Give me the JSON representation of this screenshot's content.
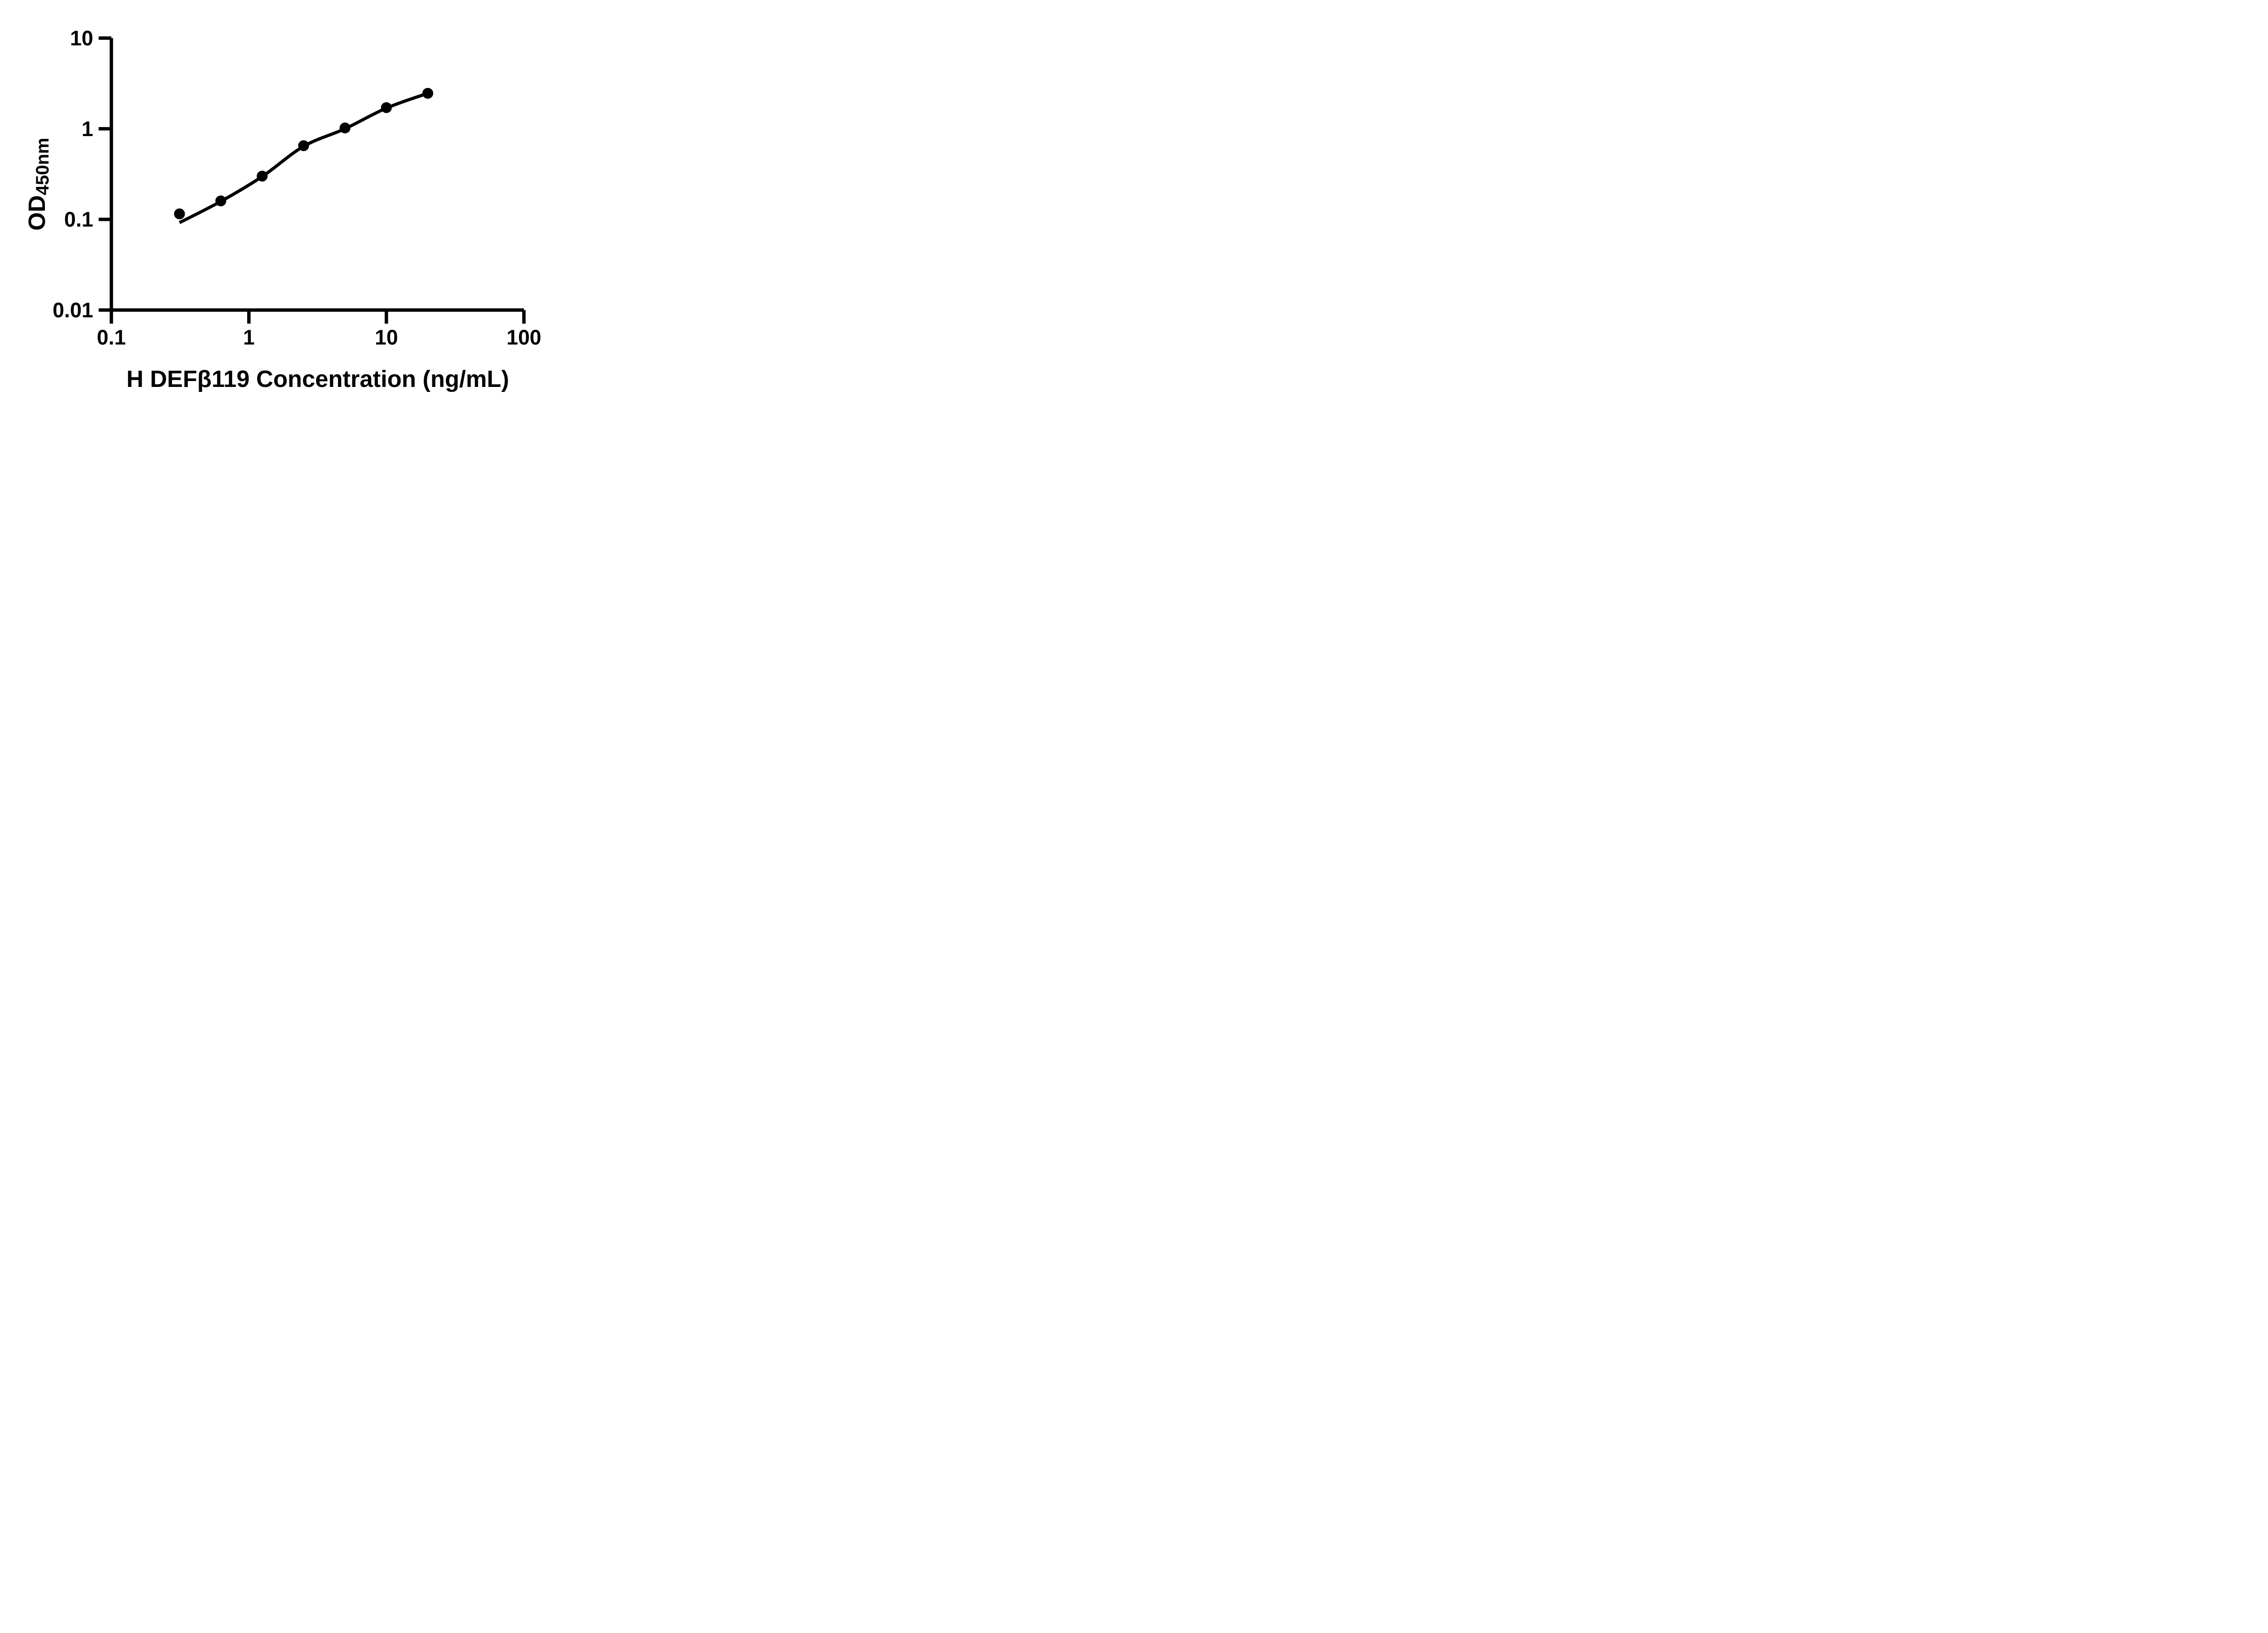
{
  "page": {
    "background": "#ffffff",
    "ink_color": "#000000"
  },
  "chart_data": {
    "type": "scatter",
    "title": "",
    "xlabel": "H DEFβ119 Concentration (ng/mL)",
    "ylabel": {
      "main": "OD",
      "sub": "450nm"
    },
    "x_scale": "log",
    "y_scale": "log",
    "xlim": [
      0.1,
      100
    ],
    "ylim": [
      0.01,
      10
    ],
    "grid": false,
    "legend": null,
    "x_ticks": [
      {
        "v": 0.1,
        "label": "0.1"
      },
      {
        "v": 1,
        "label": "1"
      },
      {
        "v": 10,
        "label": "10"
      },
      {
        "v": 100,
        "label": "100"
      }
    ],
    "y_ticks": [
      {
        "v": 10,
        "label": "10"
      },
      {
        "v": 1,
        "label": "1"
      },
      {
        "v": 0.1,
        "label": "0.1"
      },
      {
        "v": 0.01,
        "label": "0.01"
      }
    ],
    "series": [
      {
        "marker": "filled-circle",
        "color": "#000000",
        "points": [
          {
            "x": 0.313,
            "y": 0.115
          },
          {
            "x": 0.625,
            "y": 0.16
          },
          {
            "x": 1.25,
            "y": 0.3
          },
          {
            "x": 2.5,
            "y": 0.65
          },
          {
            "x": 5,
            "y": 1.02
          },
          {
            "x": 10,
            "y": 1.71
          },
          {
            "x": 20,
            "y": 2.46
          }
        ],
        "fit_curve": [
          {
            "x": 0.313,
            "y": 0.092
          },
          {
            "x": 0.625,
            "y": 0.158
          },
          {
            "x": 1.25,
            "y": 0.297
          },
          {
            "x": 2.5,
            "y": 0.64
          },
          {
            "x": 5,
            "y": 1.0
          },
          {
            "x": 10,
            "y": 1.69
          },
          {
            "x": 20,
            "y": 2.46
          }
        ]
      }
    ]
  }
}
